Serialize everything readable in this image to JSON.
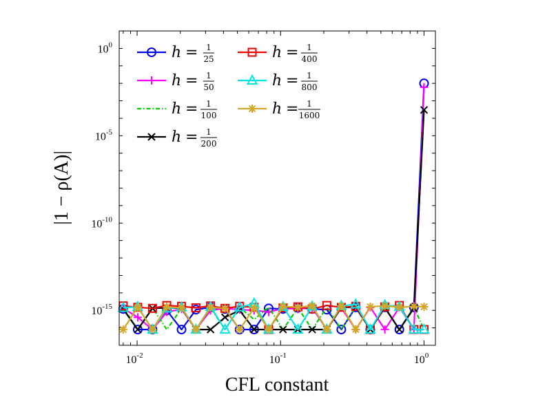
{
  "chart_data": {
    "type": "line",
    "title": "",
    "xlabel": "CFL constant",
    "ylabel": "|1 − ρ(A)|",
    "xscale": "log",
    "yscale": "log",
    "xlim": [
      0.0075,
      1.2
    ],
    "ylim": [
      1e-17,
      10.0
    ],
    "x_ticks": [
      {
        "value": 0.01,
        "base": "10",
        "exp": "-2"
      },
      {
        "value": 0.1,
        "base": "10",
        "exp": "-1"
      },
      {
        "value": 1,
        "base": "10",
        "exp": "0"
      }
    ],
    "y_ticks": [
      {
        "value": 1e-15,
        "base": "10",
        "exp": "-15"
      },
      {
        "value": 1e-10,
        "base": "10",
        "exp": "-10"
      },
      {
        "value": 1e-05,
        "base": "10",
        "exp": "-5"
      },
      {
        "value": 1,
        "base": "10",
        "exp": "0"
      }
    ],
    "grid": false,
    "legend_position": "top-left",
    "series": [
      {
        "name": "h = 1/25",
        "label_prefix": "h",
        "label_eq": "=",
        "num": "1",
        "den": "25",
        "color": "#0000ee",
        "marker": "circle",
        "dash": "solid",
        "x": [
          0.008,
          0.0101,
          0.0128,
          0.0161,
          0.0204,
          0.0257,
          0.0325,
          0.041,
          0.0518,
          0.0654,
          0.0826,
          0.104,
          0.132,
          0.166,
          0.21,
          0.265,
          0.334,
          0.422,
          0.533,
          0.673,
          0.85,
          1.0
        ],
        "y": [
          1.2e-15,
          8e-17,
          8e-17,
          1e-15,
          8e-17,
          1.1e-15,
          1.5e-15,
          1.2e-15,
          8e-17,
          8e-17,
          1.3e-15,
          1.2e-15,
          1.4e-15,
          1.2e-15,
          1.1e-15,
          8e-17,
          1.5e-15,
          8e-17,
          1.5e-15,
          8e-17,
          1.5e-15,
          0.01
        ]
      },
      {
        "name": "h = 1/50",
        "label_prefix": "h",
        "label_eq": "=",
        "num": "1",
        "den": "50",
        "color": "#ff00ff",
        "marker": "plus",
        "dash": "solid",
        "x": [
          0.008,
          0.0101,
          0.0128,
          0.0161,
          0.0204,
          0.0257,
          0.0325,
          0.041,
          0.0518,
          0.0654,
          0.0826,
          0.104,
          0.132,
          0.166,
          0.21,
          0.265,
          0.334,
          0.422,
          0.533,
          0.673,
          0.85,
          1.0
        ],
        "y": [
          1.3e-15,
          4e-16,
          8e-17,
          8e-16,
          1.2e-15,
          8e-17,
          1e-15,
          1.3e-15,
          1.1e-15,
          1e-15,
          8e-16,
          1.3e-15,
          1.2e-15,
          1.4e-15,
          8e-17,
          1.4e-15,
          8e-17,
          1.5e-15,
          8e-17,
          1.5e-15,
          8e-17,
          0.006
        ]
      },
      {
        "name": "h = 1/100",
        "label_prefix": "h",
        "label_eq": "=",
        "num": "1",
        "den": "100",
        "color": "#00cc00",
        "marker": "none",
        "dash": "dashdot",
        "x": [
          0.008,
          0.0101,
          0.0128,
          0.0161,
          0.0204,
          0.0257,
          0.0325,
          0.041,
          0.0518,
          0.0654,
          0.0826,
          0.104,
          0.132,
          0.166,
          0.21,
          0.265,
          0.334,
          0.422,
          0.533,
          0.673,
          0.85,
          1.0
        ],
        "y": [
          1.5e-15,
          8e-17,
          1.4e-15,
          8e-17,
          1.3e-15,
          8e-17,
          1.4e-15,
          8e-17,
          1.5e-15,
          3e-16,
          1.5e-15,
          8e-17,
          1.4e-15,
          8e-17,
          1.5e-15,
          8e-17,
          1.6e-15,
          8e-17,
          1.4e-15,
          8e-17,
          1.5e-15,
          8e-17
        ]
      },
      {
        "name": "h = 1/200",
        "label_prefix": "h",
        "label_eq": "=",
        "num": "1",
        "den": "200",
        "color": "#000000",
        "marker": "x",
        "dash": "solid",
        "x": [
          0.008,
          0.0101,
          0.0128,
          0.0161,
          0.0204,
          0.0257,
          0.0325,
          0.041,
          0.0518,
          0.0654,
          0.0826,
          0.104,
          0.132,
          0.166,
          0.21,
          0.265,
          0.334,
          0.422,
          0.533,
          0.673,
          0.85,
          1.0
        ],
        "y": [
          1.2e-15,
          8e-17,
          1.3e-15,
          1.4e-15,
          1.3e-15,
          8e-17,
          8e-17,
          4e-16,
          1e-15,
          8e-17,
          8e-17,
          8e-17,
          8e-17,
          8e-17,
          8e-17,
          1.5e-15,
          1.5e-15,
          8e-17,
          1.4e-15,
          8e-17,
          1.3e-15,
          0.0003
        ]
      },
      {
        "name": "h = 1/400",
        "label_prefix": "h",
        "label_eq": "=",
        "num": "1",
        "den": "400",
        "color": "#ee0000",
        "marker": "square",
        "dash": "solid",
        "x": [
          0.008,
          0.0101,
          0.0128,
          0.0161,
          0.0204,
          0.0257,
          0.0325,
          0.041,
          0.0518,
          0.0654,
          0.0826,
          0.104,
          0.132,
          0.166,
          0.21,
          0.265,
          0.334,
          0.422,
          0.533,
          0.673,
          0.85,
          1.0
        ],
        "y": [
          1.8e-15,
          1.5e-15,
          1.3e-15,
          1.9e-15,
          1.7e-15,
          1.4e-15,
          1.8e-15,
          1.3e-15,
          1.7e-15,
          1.5e-15,
          8e-17,
          1.4e-15,
          1.6e-15,
          1.2e-15,
          1.9e-15,
          1.5e-15,
          1.7e-15,
          8e-17,
          1.6e-15,
          1.9e-15,
          8e-17,
          8e-17
        ]
      },
      {
        "name": "h = 1/800",
        "label_prefix": "h",
        "label_eq": "=",
        "num": "1",
        "den": "800",
        "color": "#00e5e5",
        "marker": "triangle",
        "dash": "solid",
        "x": [
          0.008,
          0.0101,
          0.0128,
          0.0161,
          0.0204,
          0.0257,
          0.0325,
          0.041,
          0.0518,
          0.0654,
          0.0826,
          0.104,
          0.132,
          0.166,
          0.21,
          0.265,
          0.334,
          0.422,
          0.533,
          0.673,
          0.85,
          1.0
        ],
        "y": [
          1.4e-15,
          1.6e-15,
          8e-17,
          1.3e-15,
          1.5e-15,
          8e-17,
          1.6e-15,
          8e-17,
          1.5e-15,
          2.5e-15,
          8e-17,
          1.6e-15,
          8e-17,
          1.7e-15,
          8e-17,
          1.8e-15,
          2.2e-15,
          8e-17,
          2e-15,
          1.6e-15,
          8e-17,
          8e-17
        ]
      },
      {
        "name": "h = 1/1600",
        "label_prefix": "h",
        "label_eq": "=",
        "num": "1",
        "den": "1600",
        "color": "#d4a627",
        "marker": "asterisk",
        "dash": "solid",
        "x": [
          0.008,
          0.0101,
          0.0128,
          0.0161,
          0.0204,
          0.0257,
          0.0325,
          0.041,
          0.0518,
          0.0654,
          0.0826,
          0.104,
          0.132,
          0.166,
          0.21,
          0.265,
          0.334,
          0.422,
          0.533,
          0.673,
          0.85,
          1.0
        ],
        "y": [
          8e-17,
          1.5e-15,
          8e-17,
          1.6e-15,
          1.4e-15,
          8e-17,
          1.5e-15,
          1.3e-15,
          8e-17,
          1.4e-15,
          8e-17,
          1.7e-15,
          1.5e-15,
          1.8e-15,
          8e-17,
          1.8e-15,
          8e-17,
          1.6e-15,
          1.8e-15,
          1.5e-15,
          1.7e-15,
          1.6e-15
        ]
      }
    ]
  }
}
